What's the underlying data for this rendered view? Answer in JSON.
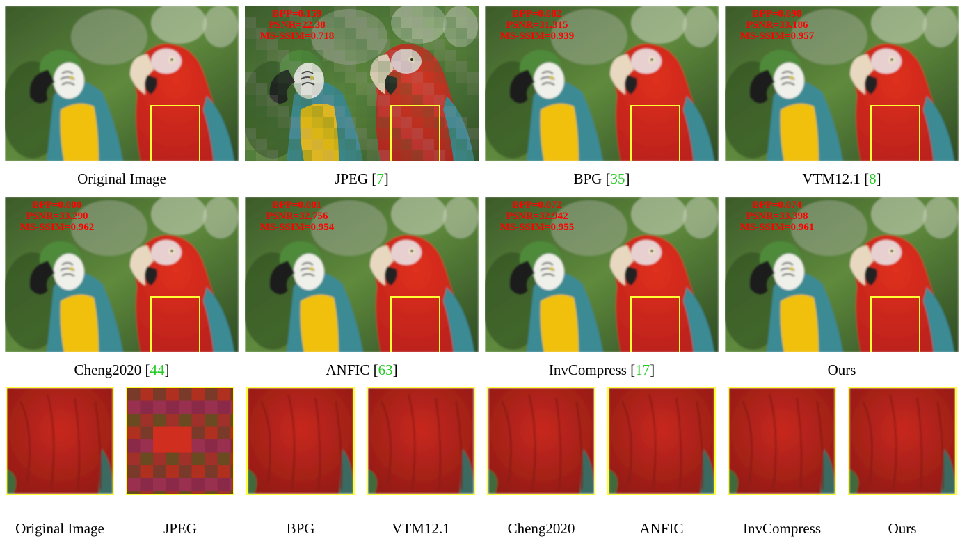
{
  "panels": [
    {
      "label": "Original Image",
      "ref": "",
      "metrics": null,
      "style": "smooth"
    },
    {
      "label": "JPEG",
      "ref": "7",
      "metrics": {
        "bpp": "BPP=0.159",
        "psnr": "PSNR=22.38",
        "msssim": "MS-SSIM=0.718"
      },
      "style": "blocky"
    },
    {
      "label": "BPG",
      "ref": "35",
      "metrics": {
        "bpp": "BPP=0.082",
        "psnr": "PSNR=31.315",
        "msssim": "MS-SSIM=0.939"
      },
      "style": "smooth"
    },
    {
      "label": "VTM12.1",
      "ref": "8",
      "metrics": {
        "bpp": "BPP=0.090",
        "psnr": "PSNR=33.186",
        "msssim": "MS-SSIM=0.957"
      },
      "style": "smooth"
    },
    {
      "label": "Cheng2020",
      "ref": "44",
      "metrics": {
        "bpp": "BPP=0.080",
        "psnr": "PSNR=33.290",
        "msssim": "MS-SSIM=0.962"
      },
      "style": "smooth"
    },
    {
      "label": "ANFIC",
      "ref": "63",
      "metrics": {
        "bpp": "BPP=0.081",
        "psnr": "PSNR=32.756",
        "msssim": "MS-SSIM=0.954"
      },
      "style": "smooth"
    },
    {
      "label": "InvCompress",
      "ref": "17",
      "metrics": {
        "bpp": "BPP=0.072",
        "psnr": "PSNR=32.942",
        "msssim": "MS-SSIM=0.955"
      },
      "style": "smooth"
    },
    {
      "label": "Ours",
      "ref": "",
      "metrics": {
        "bpp": "BPP=0.074",
        "psnr": "PSNR=33.398",
        "msssim": "MS-SSIM=0.961"
      },
      "style": "smooth"
    }
  ],
  "crops": [
    "Original Image",
    "JPEG",
    "BPG",
    "VTM12.1",
    "Cheng2020",
    "ANFIC",
    "InvCompress",
    "Ours"
  ],
  "colors": {
    "metric_text": "#ff0000",
    "reference": "#22cc22",
    "highlight_box": "#ffff33",
    "red_parrot": "#b8201c",
    "gold_parrot": "#f0c010",
    "teal_wing": "#3a8a94",
    "background_green": "#5f8a3c"
  }
}
